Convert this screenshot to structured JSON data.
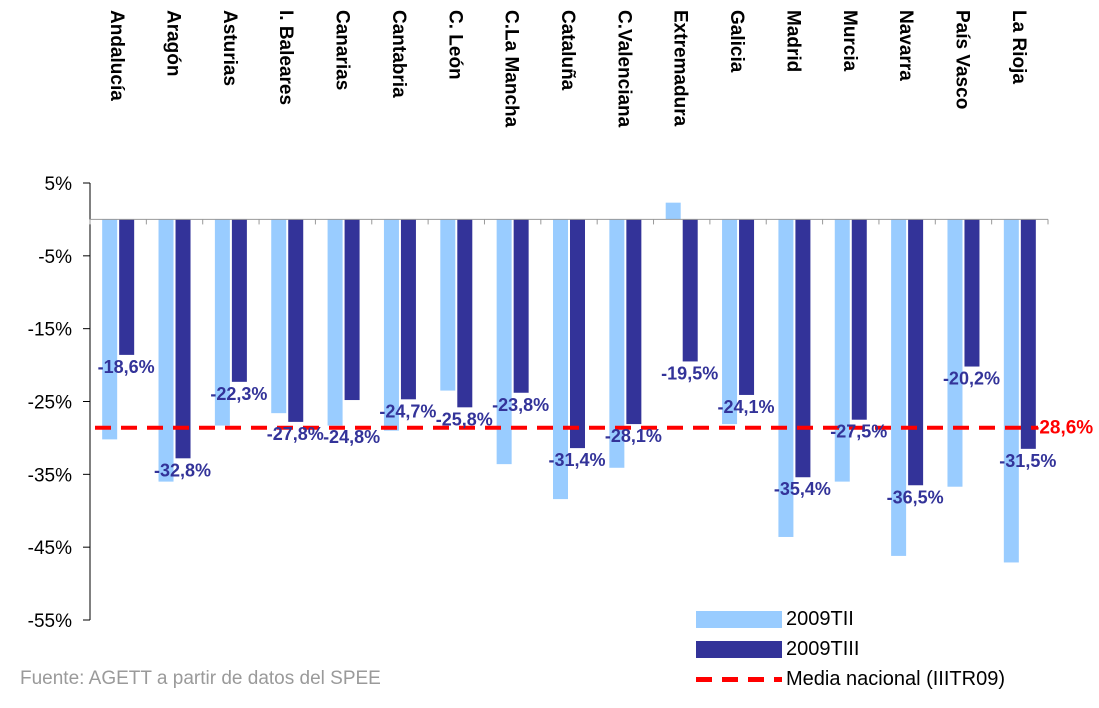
{
  "chart_data": {
    "type": "bar",
    "title": "",
    "xlabel": "",
    "ylabel": "",
    "categories": [
      "Andalucía",
      "Aragón",
      "Asturias",
      "I. Baleares",
      "Canarias",
      "Cantabria",
      "C. León",
      "C.La Mancha",
      "Cataluña",
      "C.Valenciana",
      "Extremadura",
      "Galicia",
      "Madrid",
      "Murcia",
      "Navarra",
      "País Vasco",
      "La Rioja"
    ],
    "series": [
      {
        "name": "2009TII",
        "color": "#99ccff",
        "values": [
          -30.2,
          -36.0,
          -28.3,
          -26.6,
          -28.3,
          -29.0,
          -23.5,
          -33.6,
          -38.4,
          -34.1,
          2.3,
          -28.1,
          -43.6,
          -36.0,
          -46.2,
          -36.7,
          -47.1
        ]
      },
      {
        "name": "2009TIII",
        "color": "#333399",
        "values": [
          -18.6,
          -32.8,
          -22.3,
          -27.8,
          -24.8,
          -24.7,
          -25.8,
          -23.8,
          -31.4,
          -28.1,
          -19.5,
          -24.1,
          -35.4,
          -27.5,
          -36.5,
          -20.2,
          -31.5
        ]
      }
    ],
    "data_labels": [
      "-18,6%",
      "-32,8%",
      "-22,3%",
      "-27,8%",
      "-24,8%",
      "-24,7%",
      "-25,8%",
      "-23,8%",
      "-31,4%",
      "-28,1%",
      "-19,5%",
      "-24,1%",
      "-35,4%",
      "-27,5%",
      "-36,5%",
      "-20,2%",
      "-31,5%"
    ],
    "reference_line": {
      "name": "Media nacional (IIITR09)",
      "value": -28.6,
      "label": "-28,6%",
      "color": "#ff0000"
    },
    "yticks": [
      5,
      -5,
      -15,
      -25,
      -35,
      -45,
      -55
    ],
    "ytick_labels": [
      "5%",
      "-5%",
      "-15%",
      "-25%",
      "-35%",
      "-45%",
      "-55%"
    ],
    "ylim": [
      -55,
      5
    ],
    "grid": false,
    "legend_position": "bottom-right"
  },
  "source": "Fuente:  AGETT a partir de datos del SPEE"
}
